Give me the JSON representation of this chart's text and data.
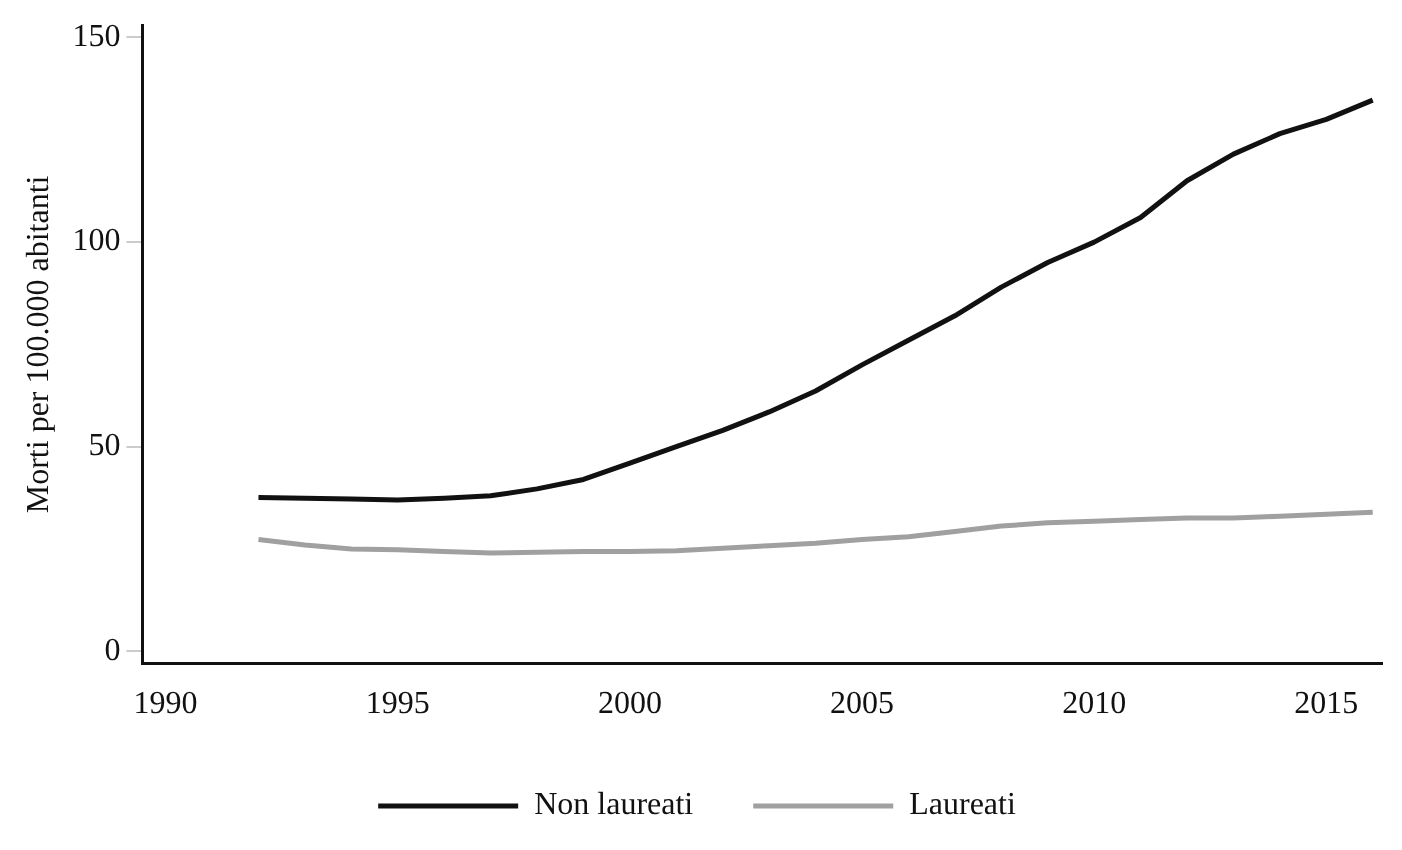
{
  "chart_data": {
    "type": "line",
    "ylabel": "Morti per 100.000 abitanti",
    "x": [
      1992,
      1993,
      1994,
      1995,
      1996,
      1997,
      1998,
      1999,
      2000,
      2001,
      2002,
      2003,
      2004,
      2005,
      2006,
      2007,
      2008,
      2009,
      2010,
      2011,
      2012,
      2013,
      2014,
      2015,
      2016
    ],
    "series": [
      {
        "name": "Non laureati",
        "color": "#111111",
        "values": [
          37.6,
          37.4,
          37.2,
          37,
          37.4,
          38,
          39.7,
          42,
          46,
          50,
          54,
          58.5,
          63.6,
          70,
          76,
          82,
          89,
          95,
          100,
          106,
          115,
          121.5,
          126.5,
          130,
          134.7
        ]
      },
      {
        "name": "Laureati",
        "color": "#a0a0a0",
        "values": [
          27.3,
          26,
          25,
          24.8,
          24.4,
          24,
          24.2,
          24.4,
          24.4,
          24.6,
          25.2,
          25.8,
          26.4,
          27.3,
          28,
          29.3,
          30.6,
          31.4,
          31.8,
          32.2,
          32.6,
          32.6,
          33,
          33.5,
          34
        ]
      }
    ],
    "xlim": [
      1989.5,
      2016.2
    ],
    "xticks": [
      1990,
      1995,
      2000,
      2005,
      2010,
      2015
    ],
    "ylim": [
      -3,
      153
    ],
    "yticks": [
      0,
      50,
      100,
      150
    ],
    "grid": false,
    "legend": "bottom",
    "marker": "none",
    "line_style": "solid"
  }
}
